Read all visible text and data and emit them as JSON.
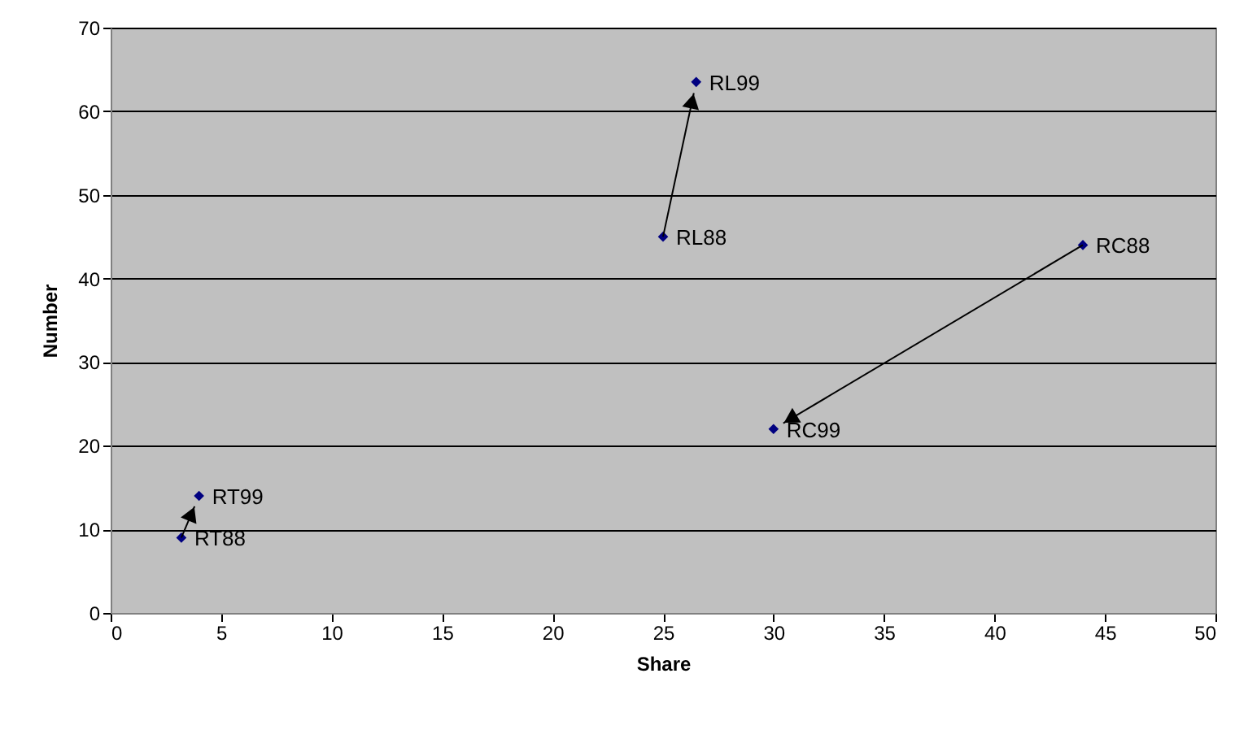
{
  "chart_data": {
    "type": "scatter",
    "xlabel": "Share",
    "ylabel": "Number",
    "x": [
      3.2,
      4,
      25,
      26.5,
      44,
      30
    ],
    "series": [
      {
        "color": "#000080",
        "values": [
          9,
          14,
          45,
          63.5,
          44,
          22
        ]
      }
    ],
    "annotations": [
      {
        "text": "RT88",
        "x": 3.2,
        "y": 9
      },
      {
        "text": "RT99",
        "x": 4,
        "y": 14
      },
      {
        "text": "RL88",
        "x": 25,
        "y": 45
      },
      {
        "text": "RL99",
        "x": 26.5,
        "y": 63.5
      },
      {
        "text": "RC88",
        "x": 44,
        "y": 44
      },
      {
        "text": "RC99",
        "x": 30,
        "y": 22
      }
    ],
    "xlim": [
      0,
      50
    ],
    "xticks": [
      0,
      5,
      10,
      15,
      20,
      25,
      30,
      35,
      40,
      45,
      50
    ],
    "ylim": [
      0,
      70
    ],
    "yticks": [
      0,
      10,
      20,
      30,
      40,
      50,
      60,
      70
    ],
    "grid": "y",
    "marker": "diamond"
  }
}
